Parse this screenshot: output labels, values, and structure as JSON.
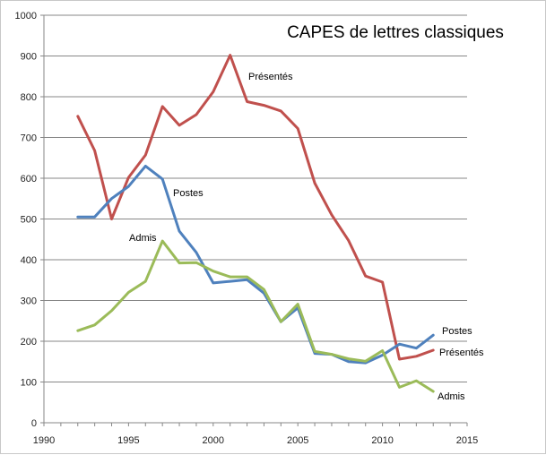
{
  "chart_data": {
    "type": "line",
    "title": "CAPES de lettres classiques",
    "xlim": [
      1990,
      2015
    ],
    "ylim": [
      0,
      1000
    ],
    "x_ticks": [
      1990,
      1995,
      2000,
      2005,
      2010,
      2015
    ],
    "y_ticks": [
      0,
      100,
      200,
      300,
      400,
      500,
      600,
      700,
      800,
      900,
      1000
    ],
    "grid": "horizontal",
    "series": [
      {
        "name": "Présentés",
        "color": "#c0504d",
        "x": [
          1992,
          1993,
          1994,
          1995,
          1996,
          1997,
          1998,
          1999,
          2000,
          2001,
          2002,
          2003,
          2004,
          2005,
          2006,
          2007,
          2008,
          2009,
          2010,
          2011,
          2012,
          2013
        ],
        "values": [
          752,
          668,
          500,
          602,
          657,
          776,
          730,
          756,
          812,
          902,
          788,
          779,
          765,
          722,
          588,
          510,
          447,
          360,
          345,
          156,
          163,
          178
        ]
      },
      {
        "name": "Postes",
        "color": "#4f81bd",
        "x": [
          1992,
          1993,
          1994,
          1995,
          1996,
          1997,
          1998,
          1999,
          2000,
          2001,
          2002,
          2003,
          2004,
          2005,
          2006,
          2007,
          2008,
          2009,
          2010,
          2011,
          2012,
          2013
        ],
        "values": [
          505,
          505,
          550,
          580,
          630,
          598,
          470,
          418,
          343,
          347,
          351,
          318,
          248,
          282,
          170,
          168,
          150,
          147,
          166,
          193,
          183,
          215
        ]
      },
      {
        "name": "Admis",
        "color": "#9bbb59",
        "x": [
          1992,
          1993,
          1994,
          1995,
          1996,
          1997,
          1998,
          1999,
          2000,
          2001,
          2002,
          2003,
          2004,
          2005,
          2006,
          2007,
          2008,
          2009,
          2010,
          2011,
          2012,
          2013
        ],
        "values": [
          226,
          240,
          275,
          320,
          347,
          446,
          392,
          393,
          372,
          358,
          358,
          327,
          248,
          291,
          175,
          168,
          157,
          151,
          177,
          87,
          103,
          77
        ]
      }
    ]
  }
}
